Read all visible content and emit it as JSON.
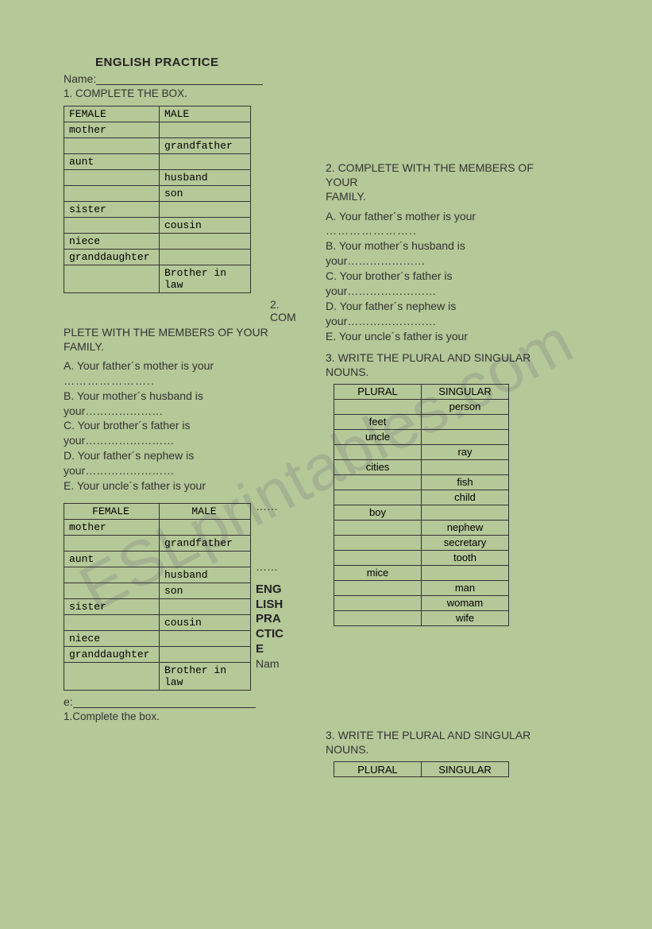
{
  "title": "ENGLISH PRACTICE",
  "nameLabel": "Name:",
  "instr1": "1. COMPLETE THE BOX.",
  "familyTable": {
    "headers": [
      "FEMALE",
      "MALE"
    ],
    "rows": [
      [
        "mother",
        ""
      ],
      [
        "",
        "grandfather"
      ],
      [
        "aunt",
        ""
      ],
      [
        "",
        "husband"
      ],
      [
        "",
        "son"
      ],
      [
        "sister",
        ""
      ],
      [
        "",
        "cousin"
      ],
      [
        "niece",
        ""
      ],
      [
        "granddaughter",
        ""
      ],
      [
        "",
        "Brother in law"
      ]
    ]
  },
  "splitCom1": "2. COM",
  "splitCom2": "PLETE WITH THE MEMBERS OF YOUR FAMILY.",
  "q2": {
    "heading": "2. COMPLETE WITH THE MEMBERS OF YOUR",
    "heading2": " FAMILY.",
    "a": "A. Your father´s mother is your",
    "adots": "…………………..",
    "b": "B. Your mother´s husband is",
    "b2": "your…………………",
    "c": "C. Your brother´s father is",
    "c2": "your……………………",
    "d": "D. Your father´s nephew is",
    "d2": "your……………………",
    "e": "E. Your uncle´s father is your"
  },
  "splitTitle": {
    "l1": "ENG",
    "l2": "LISH",
    "l3": "PRA",
    "l4": "CTIC",
    "l5": "E"
  },
  "nameSplit1": "Nam",
  "nameSplit2": "e:",
  "instr1b": "1.Complete the box.",
  "q3": {
    "heading": "3. WRITE THE PLURAL AND SINGULAR NOUNS.",
    "headers": [
      "PLURAL",
      "SINGULAR"
    ],
    "rows": [
      [
        "",
        "person"
      ],
      [
        "feet",
        ""
      ],
      [
        "uncle",
        ""
      ],
      [
        "",
        "ray"
      ],
      [
        "cities",
        ""
      ],
      [
        "",
        "fish"
      ],
      [
        "",
        "child"
      ],
      [
        "boy",
        ""
      ],
      [
        "",
        "nephew"
      ],
      [
        "",
        "secretary"
      ],
      [
        "",
        "tooth"
      ],
      [
        "mice",
        ""
      ],
      [
        "",
        "man"
      ],
      [
        "",
        "womam"
      ],
      [
        "",
        "wife"
      ]
    ]
  },
  "watermark": "ESLprintables.com",
  "dots6": "……"
}
